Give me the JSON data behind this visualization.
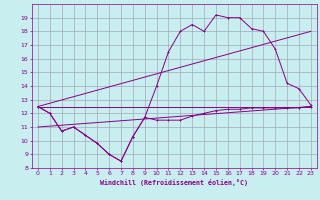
{
  "xlabel": "Windchill (Refroidissement éolien,°C)",
  "bg_color": "#c8eef0",
  "grid_color": "#9999aa",
  "line_color": "#880088",
  "xlim": [
    -0.5,
    23.5
  ],
  "ylim": [
    8,
    20
  ],
  "yticks": [
    8,
    9,
    10,
    11,
    12,
    13,
    14,
    15,
    16,
    17,
    18,
    19
  ],
  "xticks": [
    0,
    1,
    2,
    3,
    4,
    5,
    6,
    7,
    8,
    9,
    10,
    11,
    12,
    13,
    14,
    15,
    16,
    17,
    18,
    19,
    20,
    21,
    22,
    23
  ],
  "line1_x": [
    0,
    1,
    2,
    3,
    4,
    5,
    6,
    7,
    8,
    9,
    10,
    11,
    12,
    13,
    14,
    15,
    16,
    17,
    18,
    19,
    20,
    21,
    22,
    23
  ],
  "line1_y": [
    12.5,
    12.0,
    10.7,
    11.0,
    10.4,
    9.8,
    9.0,
    8.5,
    10.3,
    11.7,
    11.5,
    11.5,
    11.5,
    11.8,
    12.0,
    12.2,
    12.3,
    12.3,
    12.4,
    12.4,
    12.4,
    12.4,
    12.4,
    12.5
  ],
  "line2_x": [
    0,
    1,
    2,
    3,
    4,
    5,
    6,
    7,
    8,
    9,
    10,
    11,
    12,
    13,
    14,
    15,
    16,
    17,
    18,
    19,
    20,
    21,
    22,
    23
  ],
  "line2_y": [
    12.5,
    12.0,
    10.7,
    11.0,
    10.4,
    9.8,
    9.0,
    8.5,
    10.3,
    11.7,
    14.0,
    16.5,
    18.0,
    18.5,
    18.0,
    19.2,
    19.0,
    19.0,
    18.2,
    18.0,
    16.7,
    14.2,
    13.8,
    12.6
  ],
  "line3_x": [
    0,
    23
  ],
  "line3_y": [
    12.5,
    12.5
  ],
  "line4_x": [
    0,
    23
  ],
  "line4_y": [
    11.0,
    12.5
  ],
  "line5_x": [
    0,
    23
  ],
  "line5_y": [
    12.5,
    18.0
  ]
}
